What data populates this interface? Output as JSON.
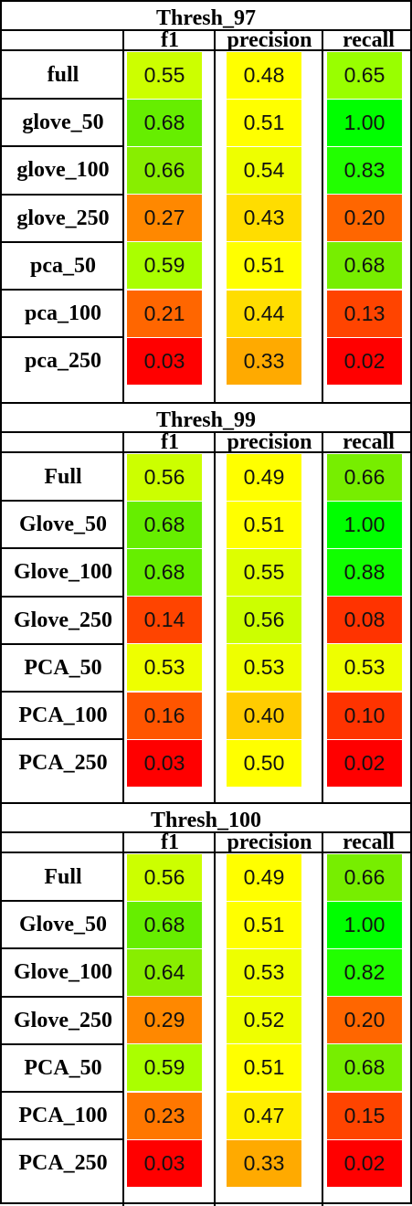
{
  "columns": [
    "f1",
    "precision",
    "recall"
  ],
  "sections": [
    {
      "title": "Thresh_97",
      "rows": [
        {
          "label": "full",
          "f1": "0.55",
          "precision": "0.48",
          "recall": "0.65",
          "colors": [
            "#ccff00",
            "#ffff00",
            "#99ff00"
          ]
        },
        {
          "label": "glove_50",
          "f1": "0.68",
          "precision": "0.51",
          "recall": "1.00",
          "colors": [
            "#66ee00",
            "#ffff00",
            "#00ff00"
          ]
        },
        {
          "label": "glove_100",
          "f1": "0.66",
          "precision": "0.54",
          "recall": "0.83",
          "colors": [
            "#88ee00",
            "#eeff00",
            "#22ff00"
          ]
        },
        {
          "label": "glove_250",
          "f1": "0.27",
          "precision": "0.43",
          "recall": "0.20",
          "colors": [
            "#ff8800",
            "#ffdd00",
            "#ff6600"
          ]
        },
        {
          "label": "pca_50",
          "f1": "0.59",
          "precision": "0.51",
          "recall": "0.68",
          "colors": [
            "#aaff00",
            "#ffff00",
            "#77ee00"
          ]
        },
        {
          "label": "pca_100",
          "f1": "0.21",
          "precision": "0.44",
          "recall": "0.13",
          "colors": [
            "#ff6600",
            "#ffdd00",
            "#ff4400"
          ]
        },
        {
          "label": "pca_250",
          "f1": "0.03",
          "precision": "0.33",
          "recall": "0.02",
          "colors": [
            "#ff0000",
            "#ffaa00",
            "#ff0000"
          ]
        }
      ]
    },
    {
      "title": "Thresh_99",
      "rows": [
        {
          "label": "Full",
          "f1": "0.56",
          "precision": "0.49",
          "recall": "0.66",
          "colors": [
            "#ccff00",
            "#ffff00",
            "#77ee00"
          ]
        },
        {
          "label": "Glove_50",
          "f1": "0.68",
          "precision": "0.51",
          "recall": "1.00",
          "colors": [
            "#66ee00",
            "#ffff00",
            "#00ff00"
          ]
        },
        {
          "label": "Glove_100",
          "f1": "0.68",
          "precision": "0.55",
          "recall": "0.88",
          "colors": [
            "#66ee00",
            "#ddff00",
            "#11ff00"
          ]
        },
        {
          "label": "Glove_250",
          "f1": "0.14",
          "precision": "0.56",
          "recall": "0.08",
          "colors": [
            "#ff4400",
            "#ccff00",
            "#ff3300"
          ]
        },
        {
          "label": "PCA_50",
          "f1": "0.53",
          "precision": "0.53",
          "recall": "0.53",
          "colors": [
            "#eeff00",
            "#eeff00",
            "#eeff00"
          ]
        },
        {
          "label": "PCA_100",
          "f1": "0.16",
          "precision": "0.40",
          "recall": "0.10",
          "colors": [
            "#ff5500",
            "#ffcc00",
            "#ff3300"
          ]
        },
        {
          "label": "PCA_250",
          "f1": "0.03",
          "precision": "0.50",
          "recall": "0.02",
          "colors": [
            "#ff0000",
            "#ffff00",
            "#ff0000"
          ]
        }
      ]
    },
    {
      "title": "Thresh_100",
      "rows": [
        {
          "label": "Full",
          "f1": "0.56",
          "precision": "0.49",
          "recall": "0.66",
          "colors": [
            "#ccff00",
            "#ffff00",
            "#77ee00"
          ]
        },
        {
          "label": "Glove_50",
          "f1": "0.68",
          "precision": "0.51",
          "recall": "1.00",
          "colors": [
            "#66ee00",
            "#ffff00",
            "#00ff00"
          ]
        },
        {
          "label": "Glove_100",
          "f1": "0.64",
          "precision": "0.53",
          "recall": "0.82",
          "colors": [
            "#88ee00",
            "#eeff00",
            "#22ff00"
          ]
        },
        {
          "label": "Glove_250",
          "f1": "0.29",
          "precision": "0.52",
          "recall": "0.20",
          "colors": [
            "#ff8800",
            "#eeff00",
            "#ff6600"
          ]
        },
        {
          "label": "PCA_50",
          "f1": "0.59",
          "precision": "0.51",
          "recall": "0.68",
          "colors": [
            "#aaff00",
            "#ffff00",
            "#77ee00"
          ]
        },
        {
          "label": "PCA_100",
          "f1": "0.23",
          "precision": "0.47",
          "recall": "0.15",
          "colors": [
            "#ff7700",
            "#ffee00",
            "#ff4400"
          ]
        },
        {
          "label": "PCA_250",
          "f1": "0.03",
          "precision": "0.33",
          "recall": "0.02",
          "colors": [
            "#ff0000",
            "#ffaa00",
            "#ff0000"
          ]
        }
      ]
    }
  ]
}
